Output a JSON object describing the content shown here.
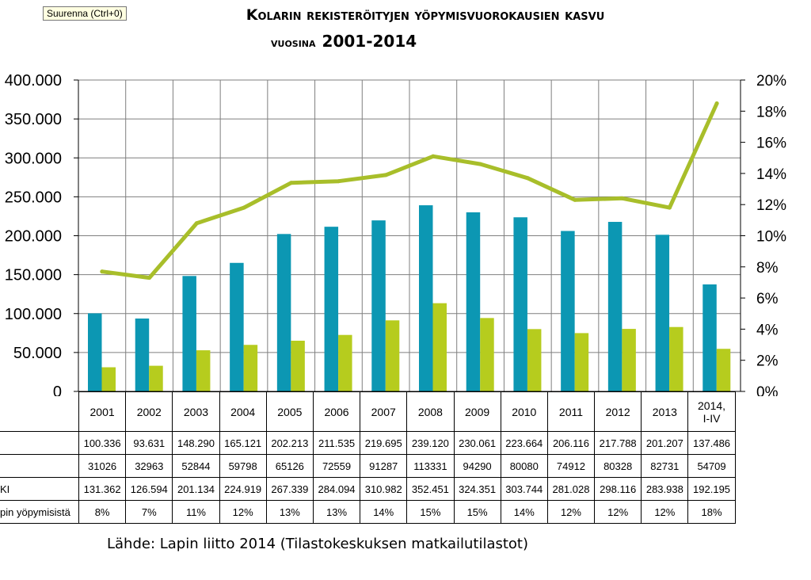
{
  "tooltip": "Suurenna (Ctrl+0)",
  "title": {
    "line1": "Kolarin rekisteröityjen yöpymisvuorokausien kasvu",
    "line2_prefix": "vuosina",
    "line2_years": "2001-2014"
  },
  "source": "Lähde: Lapin liitto 2014 (Tilastokeskuksen matkailutilastot)",
  "colors": {
    "domestic": "#0c97b3",
    "foreign": "#b6cc1e",
    "line": "#a8be2a",
    "grid": "#7f7f7f"
  },
  "chart_data": {
    "type": "bar",
    "categories": [
      "2001",
      "2002",
      "2003",
      "2004",
      "2005",
      "2006",
      "2007",
      "2008",
      "2009",
      "2010",
      "2011",
      "2012",
      "2013",
      "2014, I-IV"
    ],
    "series": [
      {
        "name": "domestic",
        "axis": "left",
        "values": [
          100336,
          93631,
          148290,
          165121,
          202213,
          211535,
          219695,
          239120,
          230061,
          223664,
          206116,
          217788,
          201207,
          137486
        ]
      },
      {
        "name": "foreign",
        "axis": "left",
        "values": [
          31026,
          32963,
          52844,
          59798,
          65126,
          72559,
          91287,
          113331,
          94290,
          80080,
          74912,
          80328,
          82731,
          54709
        ]
      },
      {
        "name": "foreign share",
        "type": "line",
        "axis": "right",
        "values": [
          7.7,
          7.3,
          10.8,
          11.8,
          13.4,
          13.5,
          13.9,
          15.1,
          14.6,
          13.7,
          12.3,
          12.4,
          11.8,
          18.5
        ]
      }
    ],
    "ylim_left": [
      0,
      400000
    ],
    "ylim_right": [
      0,
      20
    ],
    "yticks_left": [
      "0",
      "50.000",
      "100.000",
      "150.000",
      "200.000",
      "250.000",
      "300.000",
      "350.000",
      "400.000"
    ],
    "yticks_right": [
      "0%",
      "2%",
      "4%",
      "6%",
      "8%",
      "10%",
      "12%",
      "14%",
      "16%",
      "18%",
      "20%"
    ]
  },
  "table": {
    "rows": [
      {
        "label": "",
        "cells": [
          "100.336",
          "93.631",
          "148.290",
          "165.121",
          "202.213",
          "211.535",
          "219.695",
          "239.120",
          "230.061",
          "223.664",
          "206.116",
          "217.788",
          "201.207",
          "137.486"
        ]
      },
      {
        "label": "",
        "cells": [
          "31026",
          "32963",
          "52844",
          "59798",
          "65126",
          "72559",
          "91287",
          "113331",
          "94290",
          "80080",
          "74912",
          "80328",
          "82731",
          "54709"
        ]
      },
      {
        "label": "KI",
        "cells": [
          "131.362",
          "126.594",
          "201.134",
          "224.919",
          "267.339",
          "284.094",
          "310.982",
          "352.451",
          "324.351",
          "303.744",
          "281.028",
          "298.116",
          "283.938",
          "192.195"
        ]
      },
      {
        "label": "pin yöpymisistä",
        "cells": [
          "8%",
          "7%",
          "11%",
          "12%",
          "13%",
          "13%",
          "14%",
          "15%",
          "15%",
          "14%",
          "12%",
          "12%",
          "12%",
          "18%"
        ]
      }
    ]
  }
}
